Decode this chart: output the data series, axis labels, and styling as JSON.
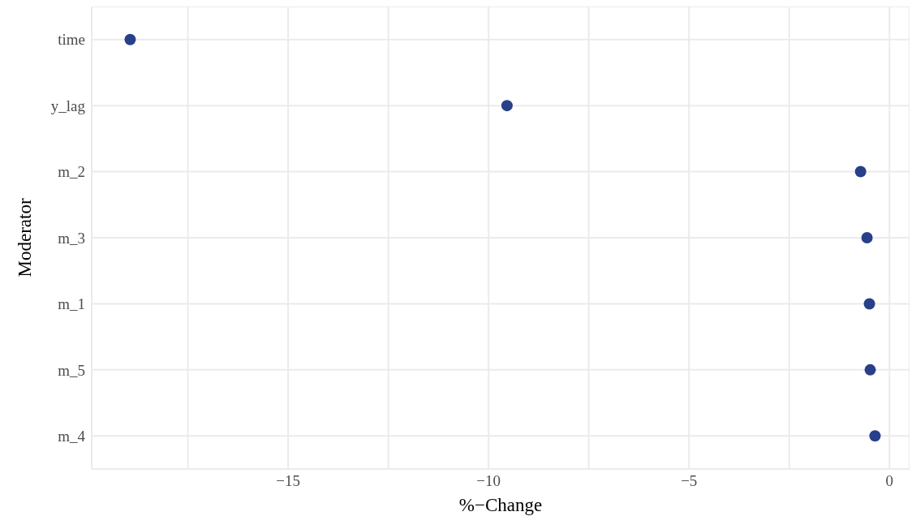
{
  "chart_data": {
    "type": "scatter",
    "orientation": "horizontal",
    "xlabel": "%−Change",
    "ylabel": "Moderator",
    "categories": [
      "time",
      "y_lag",
      "m_2",
      "m_3",
      "m_1",
      "m_5",
      "m_4"
    ],
    "values": [
      -18.94,
      -9.54,
      -0.72,
      -0.56,
      -0.5,
      -0.48,
      -0.36
    ],
    "color": "#283f8a",
    "marker": "circle",
    "grid": true,
    "legend": false,
    "xlim": [
      -19.9,
      0.5
    ],
    "xticks": [
      {
        "value": -17.5,
        "label": null
      },
      -15,
      {
        "value": -12.5,
        "label": null
      },
      -10,
      {
        "value": -7.5,
        "label": null
      },
      -5,
      {
        "value": -2.5,
        "label": null
      },
      0
    ]
  }
}
